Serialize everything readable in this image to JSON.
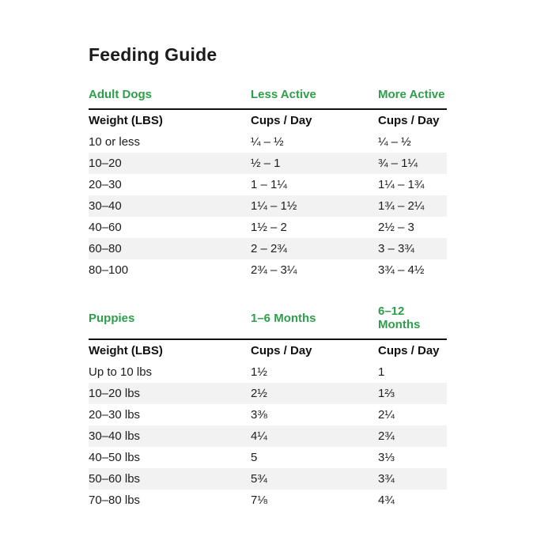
{
  "title": "Feeding Guide",
  "colors": {
    "accent_green": "#2e9e4b",
    "stripe_gray": "#f2f2f2",
    "text": "#161616"
  },
  "adult": {
    "section": "Adult Dogs",
    "col2": "Less Active",
    "col3": "More Active",
    "weight_header": "Weight (LBS)",
    "cups_header_less": "Cups / Day",
    "cups_header_more": "Cups / Day",
    "rows": [
      {
        "weight": "10 or less",
        "less": "¼ – ½",
        "more": "¼ – ½"
      },
      {
        "weight": "10–20",
        "less": "½ – 1",
        "more": "¾ – 1¼"
      },
      {
        "weight": "20–30",
        "less": "1 – 1¼",
        "more": "1¼ – 1¾"
      },
      {
        "weight": "30–40",
        "less": "1¼ – 1½",
        "more": "1¾ – 2¼"
      },
      {
        "weight": "40–60",
        "less": "1½ – 2",
        "more": "2½ – 3"
      },
      {
        "weight": "60–80",
        "less": "2 – 2¾",
        "more": "3 – 3¾"
      },
      {
        "weight": "80–100",
        "less": "2¾ – 3¼",
        "more": "3¾ – 4½"
      }
    ]
  },
  "puppies": {
    "section": "Puppies",
    "col2": "1–6 Months",
    "col3": "6–12 Months",
    "weight_header": "Weight (LBS)",
    "cups_header_young": "Cups / Day",
    "cups_header_old": "Cups / Day",
    "rows": [
      {
        "weight": "Up to 10 lbs",
        "young": "1½",
        "old": "1"
      },
      {
        "weight": "10–20 lbs",
        "young": "2½",
        "old": "1⅔"
      },
      {
        "weight": "20–30 lbs",
        "young": "3⅜",
        "old": "2¼"
      },
      {
        "weight": "30–40 lbs",
        "young": "4¼",
        "old": "2¾"
      },
      {
        "weight": "40–50 lbs",
        "young": "5",
        "old": "3⅓"
      },
      {
        "weight": "50–60 lbs",
        "young": "5¾",
        "old": "3¾"
      },
      {
        "weight": "70–80 lbs",
        "young": "7⅛",
        "old": "4¾"
      }
    ]
  }
}
